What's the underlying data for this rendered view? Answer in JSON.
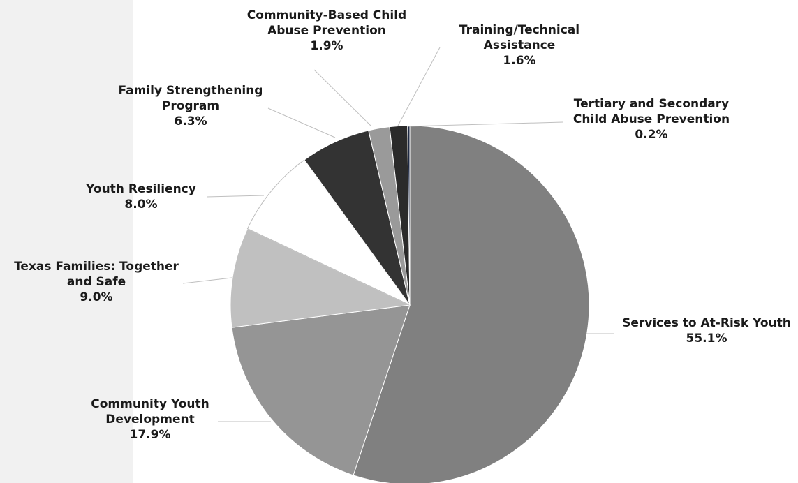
{
  "chart_data": {
    "type": "pie",
    "title": "",
    "slices": [
      {
        "label_lines": [
          "Services to At-Risk Youth"
        ],
        "value_label": "55.1%",
        "value": 55.1,
        "color": "#808080"
      },
      {
        "label_lines": [
          "Community Youth",
          "Development"
        ],
        "value_label": "17.9%",
        "value": 17.9,
        "color": "#959595"
      },
      {
        "label_lines": [
          "Texas Families: Together",
          "and Safe"
        ],
        "value_label": "9.0%",
        "value": 9.0,
        "color": "#c0c0c0"
      },
      {
        "label_lines": [
          "Youth Resiliency"
        ],
        "value_label": "8.0%",
        "value": 8.0,
        "color": "#ffffff"
      },
      {
        "label_lines": [
          "Family Strengthening",
          "Program"
        ],
        "value_label": "6.3%",
        "value": 6.3,
        "color": "#333333"
      },
      {
        "label_lines": [
          "Community-Based Child",
          "Abuse Prevention"
        ],
        "value_label": "1.9%",
        "value": 1.9,
        "color": "#9a9a9a"
      },
      {
        "label_lines": [
          "Training/Technical",
          "Assistance"
        ],
        "value_label": "1.6%",
        "value": 1.6,
        "color": "#2b2b2b"
      },
      {
        "label_lines": [
          "Tertiary and Secondary",
          "Child Abuse Prevention"
        ],
        "value_label": "0.2%",
        "value": 0.2,
        "color": "#1f2a44"
      }
    ],
    "legend": "none",
    "data_labels": "outside-with-leader-lines"
  }
}
